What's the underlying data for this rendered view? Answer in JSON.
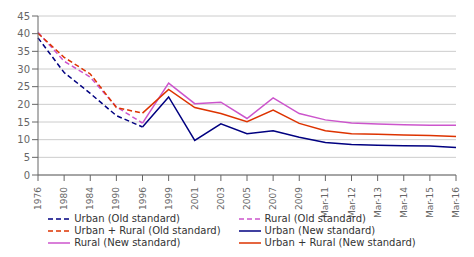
{
  "chart_data": {
    "type": "line",
    "categories": [
      "1976",
      "1980",
      "1984",
      "1990",
      "1996",
      "1999",
      "2001",
      "2003",
      "2005",
      "2007",
      "2009",
      "Mar-11",
      "Mar-12",
      "Mar-13",
      "Mar-14",
      "Mar-15",
      "Mar-16"
    ],
    "series": [
      {
        "name": "Urban (Old standard)",
        "color": "#000080",
        "line_style": "dashed",
        "values": [
          38.8,
          29.0,
          23.1,
          16.8,
          13.6,
          null,
          null,
          null,
          null,
          null,
          null,
          null,
          null,
          null,
          null,
          null,
          null
        ]
      },
      {
        "name": "Rural (Old standard)",
        "color": "#CC55CC",
        "line_style": "dashed",
        "values": [
          40.4,
          32.2,
          27.7,
          19.3,
          14.7,
          null,
          null,
          null,
          null,
          null,
          null,
          null,
          null,
          null,
          null,
          null,
          null
        ]
      },
      {
        "name": "Urban + Rural (Old standard)",
        "color": "#DD3300",
        "line_style": "dashed",
        "values": [
          40.1,
          33.3,
          28.6,
          19.1,
          17.5,
          null,
          null,
          null,
          null,
          null,
          null,
          null,
          null,
          null,
          null,
          null,
          null
        ]
      },
      {
        "name": "Urban (New standard)",
        "color": "#000080",
        "line_style": "solid",
        "values": [
          null,
          null,
          null,
          null,
          13.6,
          22.1,
          9.8,
          14.5,
          11.7,
          12.5,
          10.7,
          9.2,
          8.6,
          8.4,
          8.3,
          8.2,
          7.8
        ]
      },
      {
        "name": "Rural (New standard)",
        "color": "#CC55CC",
        "line_style": "solid",
        "values": [
          null,
          null,
          null,
          null,
          14.7,
          26.0,
          20.2,
          20.6,
          16.0,
          21.8,
          17.4,
          15.6,
          14.7,
          14.4,
          14.2,
          14.1,
          14.1
        ]
      },
      {
        "name": "Urban + Rural (New standard)",
        "color": "#DD3300",
        "line_style": "solid",
        "values": [
          null,
          null,
          null,
          null,
          17.5,
          24.2,
          19.1,
          17.4,
          15.1,
          18.4,
          14.6,
          12.5,
          11.7,
          11.5,
          11.3,
          11.2,
          10.9
        ]
      }
    ],
    "ylim": [
      0,
      45
    ],
    "yticks": [
      0,
      5,
      10,
      15,
      20,
      25,
      30,
      35,
      40,
      45
    ],
    "grid": true,
    "legend": "bottom"
  }
}
